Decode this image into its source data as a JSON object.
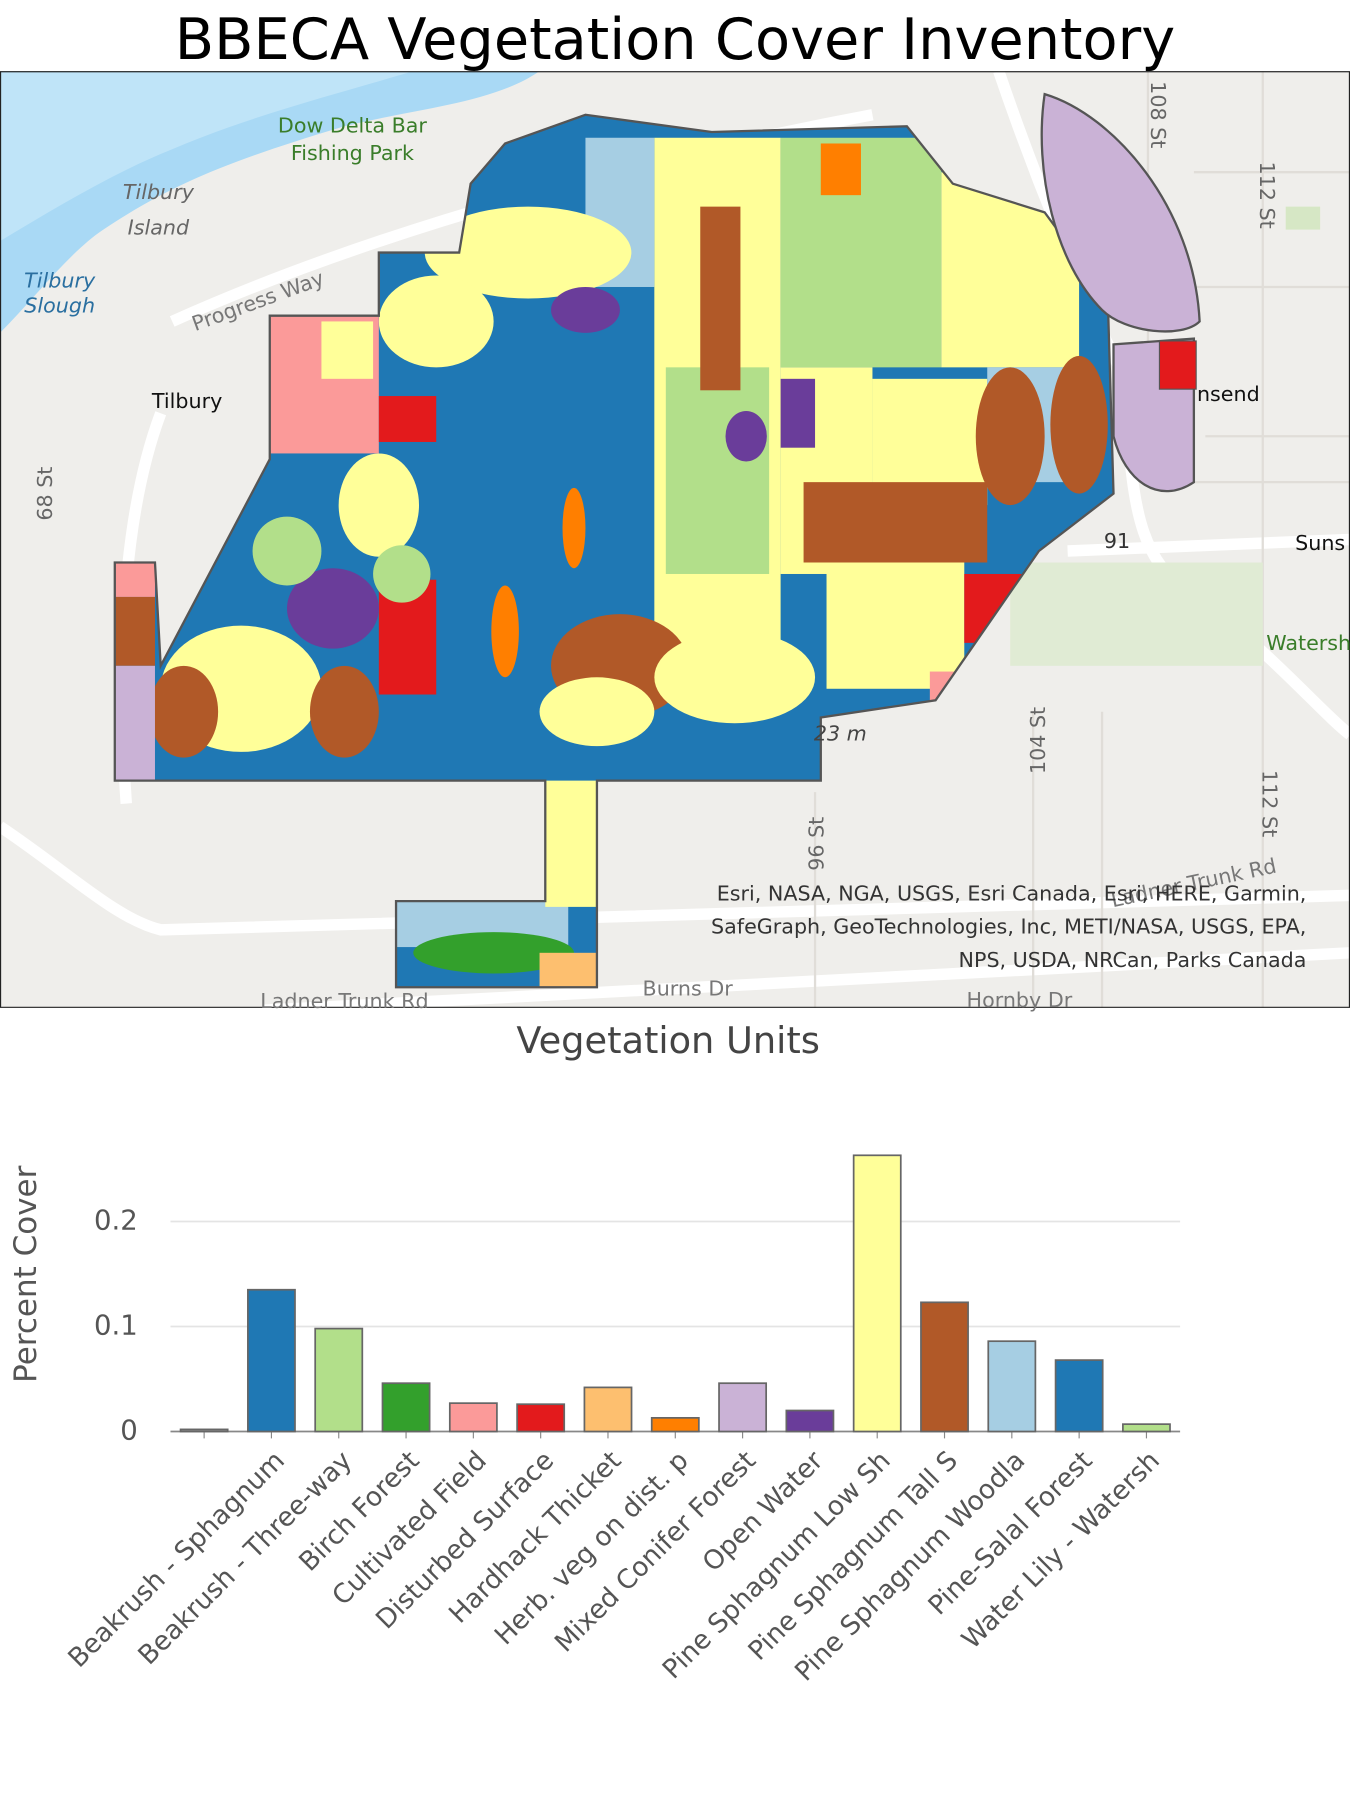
{
  "header": {
    "title": "BBECA Vegetation Cover Inventory"
  },
  "map": {
    "labels": [
      "Dow Delta Bar",
      "Fishing Park",
      "Tilbury",
      "Island",
      "Tilbury",
      "Slough",
      "Progress Way",
      "Tilbury",
      "68 St",
      "108 St",
      "112 St",
      "nsend",
      "91",
      "Suns",
      "Watersh",
      "23 m",
      "104 St",
      "96 St",
      "112 St",
      "Ladner Trunk Rd",
      "Burns Dr",
      "Hornby Dr",
      "Ladner Trunk Rd"
    ],
    "attribution": [
      "Esri, NASA, NGA, USGS, Esri Canada, Esri, HERE, Garmin,",
      "SafeGraph, GeoTechnologies, Inc, METI/NASA, USGS, EPA,",
      "NPS, USDA, NRCan, Parks Canada"
    ]
  },
  "chart_data": {
    "type": "bar",
    "title": "Vegetation Units",
    "y_label": "Percent Cover",
    "categories": [
      null,
      "Beakrush - Sphagnum",
      "Beakrush - Three-way",
      "Birch Forest",
      "Cultivated Field",
      "Disturbed Surface",
      "Hardhack Thicket",
      "Herb. veg on dist. p",
      "Mixed Conifer Forest",
      "Open Water",
      "Pine Sphagnum Low Sh",
      "Pine Sphagnum Tall S",
      "Pine Sphagnum Woodla",
      "Pine-Salal Forest",
      "Water Lily - Watersh"
    ],
    "values": [
      0.002,
      0.135,
      0.098,
      0.046,
      0.027,
      0.026,
      0.042,
      0.013,
      0.046,
      0.02,
      0.263,
      0.123,
      0.086,
      0.068,
      0.007
    ],
    "colors": [
      "#999999",
      "#1f78b4",
      "#b2df8a",
      "#33a02c",
      "#fb9a99",
      "#e31a1c",
      "#fdbf6f",
      "#ff7f00",
      "#cab2d6",
      "#6a3d9a",
      "#ffff99",
      "#b15928",
      "#a6cee3",
      "#1f78b4",
      "#b2df8a"
    ],
    "ylim": [
      0,
      0.27
    ],
    "yticks": [
      0,
      0.1,
      0.2
    ],
    "grid": true
  }
}
